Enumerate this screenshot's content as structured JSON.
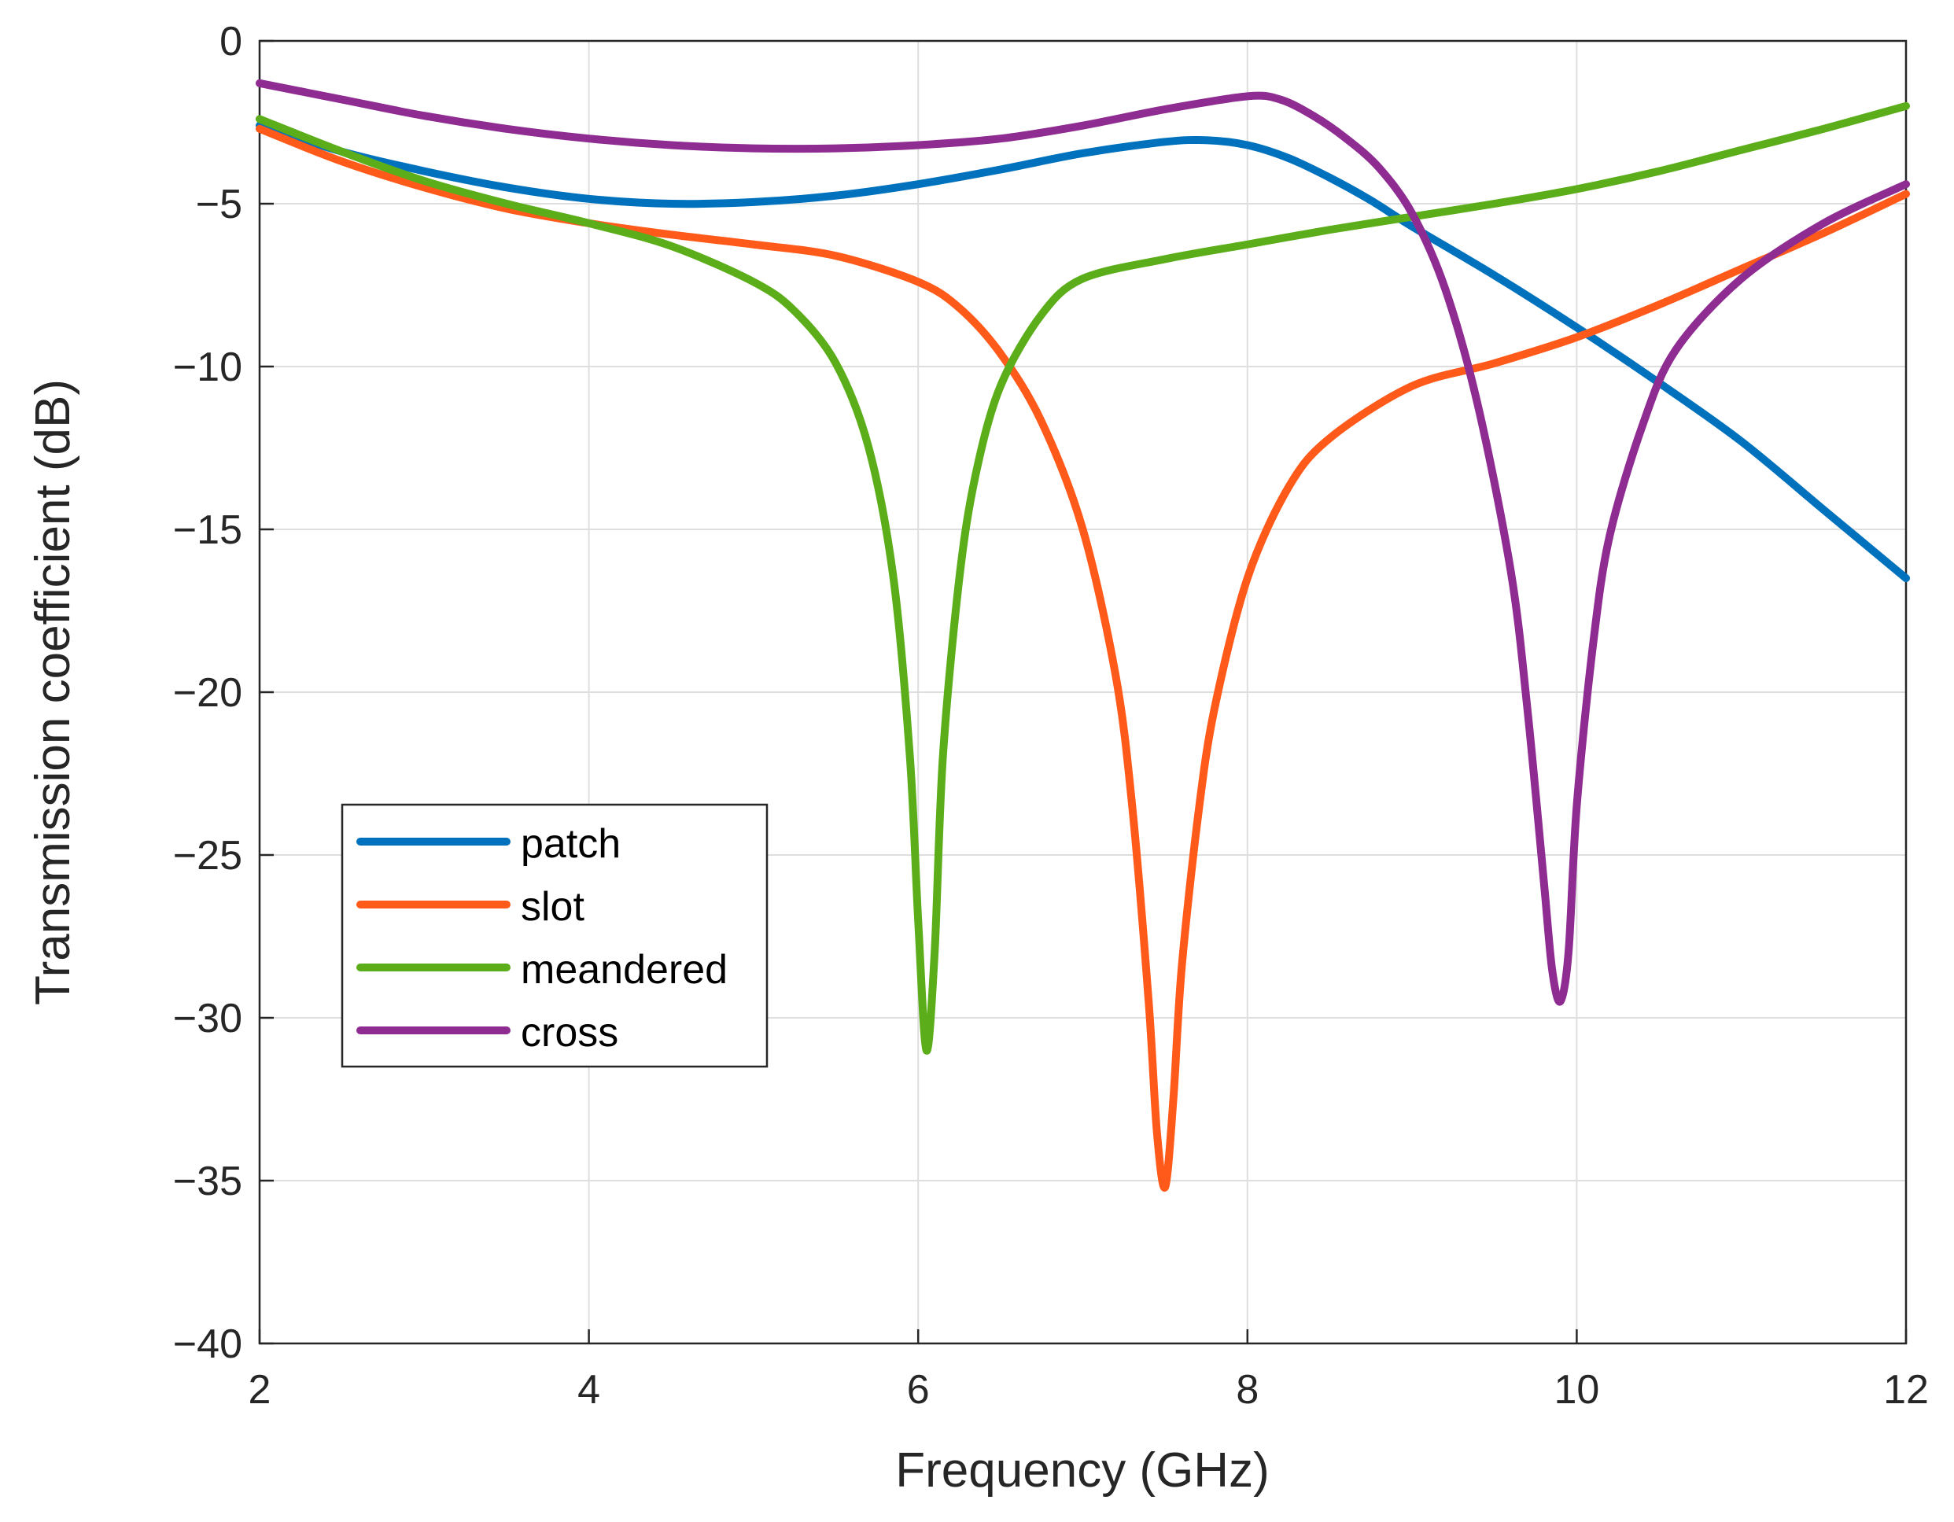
{
  "chart_data": {
    "type": "line",
    "title": "",
    "xlabel": "Frequency (GHz)",
    "ylabel": "Transmission coefficient (dB)",
    "xlim": [
      2,
      12
    ],
    "ylim": [
      -40,
      0
    ],
    "xticks": [
      2,
      4,
      6,
      8,
      10,
      12
    ],
    "yticks": [
      0,
      -5,
      -10,
      -15,
      -20,
      -25,
      -30,
      -35,
      -40
    ],
    "xtick_labels": [
      "2",
      "4",
      "6",
      "8",
      "10",
      "12"
    ],
    "ytick_labels": [
      "0",
      "−5",
      "−10",
      "−15",
      "−20",
      "−25",
      "−30",
      "−35",
      "−40"
    ],
    "grid": true,
    "legend_position": "lower-left",
    "series": [
      {
        "name": "patch",
        "color": "#0072BD",
        "x": [
          2,
          2.5,
          3,
          3.5,
          4,
          4.5,
          5,
          5.5,
          6,
          6.5,
          7,
          7.5,
          7.75,
          8,
          8.25,
          8.5,
          8.75,
          9,
          9.5,
          10,
          10.5,
          11,
          11.5,
          12
        ],
        "y": [
          -2.6,
          -3.4,
          -4.0,
          -4.5,
          -4.85,
          -5.0,
          -4.95,
          -4.75,
          -4.4,
          -3.95,
          -3.45,
          -3.1,
          -3.05,
          -3.2,
          -3.6,
          -4.2,
          -4.9,
          -5.7,
          -7.2,
          -8.8,
          -10.5,
          -12.3,
          -14.4,
          -16.5
        ]
      },
      {
        "name": "slot",
        "color": "#FF5A1A",
        "x": [
          2,
          2.5,
          3,
          3.5,
          4,
          4.5,
          5,
          5.5,
          6,
          6.25,
          6.5,
          6.75,
          7,
          7.2,
          7.3,
          7.4,
          7.45,
          7.5,
          7.55,
          7.6,
          7.7,
          7.8,
          8,
          8.25,
          8.5,
          9,
          9.5,
          10,
          10.5,
          11,
          11.5,
          12
        ],
        "y": [
          -2.7,
          -3.7,
          -4.5,
          -5.15,
          -5.6,
          -5.95,
          -6.25,
          -6.6,
          -7.4,
          -8.2,
          -9.6,
          -11.7,
          -15.0,
          -19.5,
          -23.5,
          -29.5,
          -33.5,
          -35.2,
          -32.5,
          -28.5,
          -23.8,
          -20.5,
          -16.5,
          -13.7,
          -12.2,
          -10.6,
          -9.9,
          -9.1,
          -8.1,
          -7.0,
          -5.9,
          -4.7
        ]
      },
      {
        "name": "meandered",
        "color": "#5BAE1A",
        "x": [
          2,
          2.5,
          3,
          3.5,
          4,
          4.5,
          5,
          5.25,
          5.5,
          5.7,
          5.85,
          5.95,
          6.0,
          6.05,
          6.1,
          6.15,
          6.25,
          6.35,
          6.5,
          6.75,
          7,
          7.5,
          8,
          8.5,
          9,
          9.5,
          10,
          10.5,
          11,
          11.5,
          12
        ],
        "y": [
          -2.4,
          -3.4,
          -4.3,
          -5.0,
          -5.6,
          -6.3,
          -7.4,
          -8.3,
          -9.9,
          -12.5,
          -16.5,
          -22.0,
          -27.0,
          -31.0,
          -28.0,
          -22.0,
          -16.5,
          -13.3,
          -10.6,
          -8.4,
          -7.3,
          -6.7,
          -6.25,
          -5.8,
          -5.4,
          -5.0,
          -4.55,
          -4.0,
          -3.35,
          -2.7,
          -2.0
        ]
      },
      {
        "name": "cross",
        "color": "#8E2C92",
        "x": [
          2,
          2.5,
          3,
          3.5,
          4,
          4.5,
          5,
          5.5,
          6,
          6.5,
          7,
          7.5,
          8,
          8.2,
          8.4,
          8.6,
          8.8,
          9.0,
          9.2,
          9.4,
          9.6,
          9.7,
          9.8,
          9.85,
          9.9,
          9.95,
          10.0,
          10.1,
          10.2,
          10.4,
          10.6,
          11,
          11.5,
          12
        ],
        "y": [
          -1.3,
          -1.8,
          -2.3,
          -2.7,
          -3.0,
          -3.2,
          -3.3,
          -3.3,
          -3.2,
          -3.0,
          -2.6,
          -2.1,
          -1.7,
          -1.8,
          -2.3,
          -3.0,
          -3.9,
          -5.3,
          -7.6,
          -11.2,
          -16.3,
          -20.5,
          -25.8,
          -28.5,
          -29.5,
          -28.0,
          -23.5,
          -18.5,
          -15.2,
          -11.8,
          -9.5,
          -7.3,
          -5.6,
          -4.4
        ]
      }
    ]
  }
}
